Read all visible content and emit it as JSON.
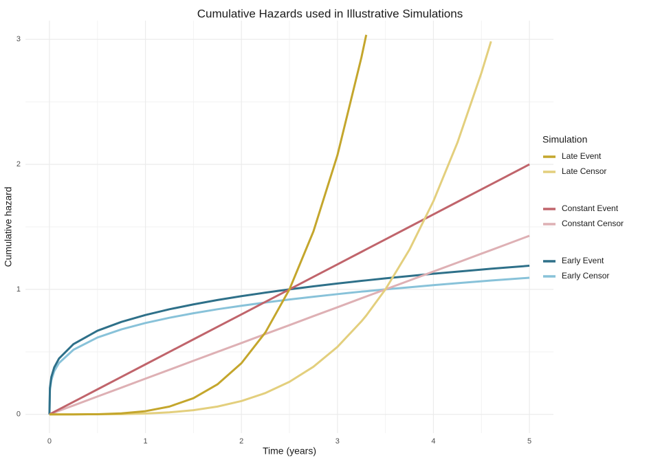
{
  "chart_data": {
    "type": "line",
    "title": "Cumulative Hazards used in Illustrative Simulations",
    "x_label": "Time (years)",
    "y_label": "Cumulative hazard",
    "legend_title": "Simulation",
    "legend_position": "right",
    "grid": true,
    "x": [
      0,
      0.005,
      0.02,
      0.05,
      0.1,
      0.25,
      0.5,
      0.75,
      1,
      1.25,
      1.5,
      1.75,
      2,
      2.25,
      2.5,
      2.75,
      3,
      3.25,
      3.3,
      3.5,
      3.75,
      4,
      4.25,
      4.5,
      4.6,
      4.75,
      5
    ],
    "series": [
      {
        "name": "Late Event",
        "color": "#c4a62c",
        "values": [
          0,
          0,
          0,
          0,
          0,
          0.0001,
          0.0016,
          0.0081,
          0.0256,
          0.0625,
          0.1296,
          0.2401,
          0.4096,
          0.6561,
          1.0,
          1.4641,
          2.0736,
          2.8561,
          3.036,
          null,
          null,
          null,
          null,
          null,
          null,
          null,
          null
        ]
      },
      {
        "name": "Late Censor",
        "color": "#e3cf7d",
        "values": [
          0,
          0,
          0,
          0,
          0,
          0,
          0.0004,
          0.0021,
          0.0067,
          0.0163,
          0.0337,
          0.0625,
          0.1066,
          0.1708,
          0.2603,
          0.3811,
          0.5398,
          0.7443,
          0.7904,
          1.0,
          1.3177,
          1.7062,
          2.174,
          2.7324,
          2.9839,
          null,
          null
        ]
      },
      {
        "name": "Constant Event",
        "color": "#c0646b",
        "values": [
          0,
          0.002,
          0.008,
          0.02,
          0.04,
          0.1,
          0.2,
          0.3,
          0.4,
          0.5,
          0.6,
          0.7,
          0.8,
          0.9,
          1.0,
          1.1,
          1.2,
          1.3,
          1.32,
          1.4,
          1.5,
          1.6,
          1.7,
          1.8,
          1.84,
          1.9,
          2.0
        ]
      },
      {
        "name": "Constant Censor",
        "color": "#deb0b4",
        "values": [
          0,
          0.001,
          0.006,
          0.014,
          0.029,
          0.071,
          0.143,
          0.214,
          0.286,
          0.357,
          0.429,
          0.5,
          0.571,
          0.643,
          0.714,
          0.786,
          0.857,
          0.929,
          0.943,
          1.0,
          1.071,
          1.143,
          1.214,
          1.286,
          1.314,
          1.357,
          1.429
        ]
      },
      {
        "name": "Early Event",
        "color": "#2e7089",
        "values": [
          0,
          0.2115,
          0.299,
          0.376,
          0.447,
          0.562,
          0.669,
          0.74,
          0.795,
          0.841,
          0.88,
          0.915,
          0.946,
          0.974,
          1.0,
          1.024,
          1.047,
          1.068,
          1.072,
          1.088,
          1.107,
          1.125,
          1.142,
          1.158,
          1.165,
          1.174,
          1.189
        ]
      },
      {
        "name": "Early Censor",
        "color": "#88c2d9",
        "values": [
          0,
          0.194,
          0.275,
          0.346,
          0.411,
          0.517,
          0.615,
          0.68,
          0.731,
          0.773,
          0.809,
          0.841,
          0.869,
          0.895,
          0.919,
          0.941,
          0.962,
          0.982,
          0.985,
          1.0,
          1.017,
          1.034,
          1.05,
          1.065,
          1.071,
          1.079,
          1.093
        ]
      }
    ],
    "xlim": [
      -0.25,
      5.25
    ],
    "xticks": [
      0,
      1,
      2,
      3,
      4,
      5
    ],
    "ylim": [
      -0.15,
      3.15
    ],
    "yticks": [
      0,
      1,
      2,
      3
    ]
  }
}
